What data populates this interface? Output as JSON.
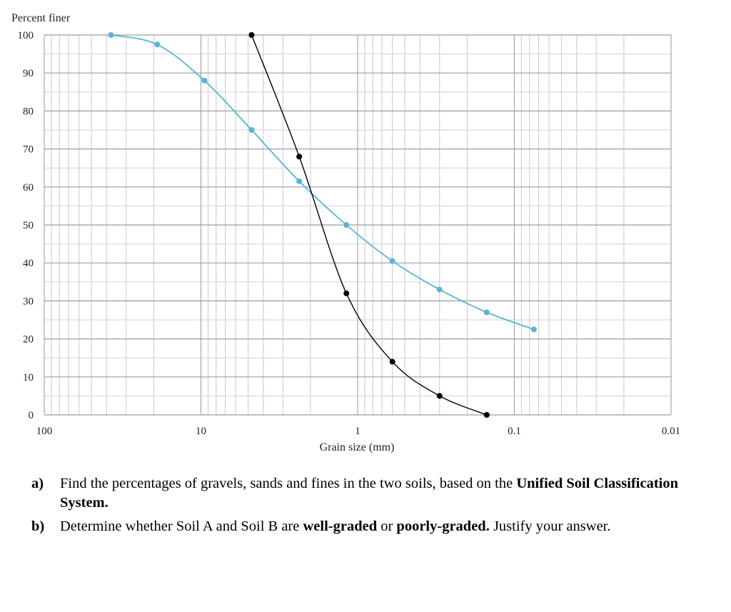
{
  "chart_data": {
    "type": "line",
    "ylabel": "Percent finer",
    "xlabel": "Grain size (mm)",
    "x_scale": "log",
    "x_reversed": true,
    "xlim": [
      100,
      0.01
    ],
    "ylim": [
      0,
      100
    ],
    "x_ticks": [
      100,
      10,
      1,
      0.1,
      0.01
    ],
    "x_tick_labels": [
      "100",
      "10",
      "1",
      "0.1",
      "0.01"
    ],
    "y_ticks": [
      0,
      10,
      20,
      30,
      40,
      50,
      60,
      70,
      80,
      90,
      100
    ],
    "y_tick_labels": [
      "0",
      "10",
      "20",
      "30",
      "40",
      "50",
      "60",
      "70",
      "80",
      "90",
      "100"
    ],
    "grid": true,
    "series": [
      {
        "color": "#5ab4d6",
        "x": [
          37.5,
          19,
          9.5,
          4.75,
          2.36,
          1.18,
          0.6,
          0.3,
          0.15,
          0.075
        ],
        "y": [
          100,
          97.5,
          88,
          75,
          61.5,
          50,
          40.5,
          33,
          27,
          22.5
        ]
      },
      {
        "color": "#000000",
        "x": [
          4.75,
          2.36,
          1.18,
          0.6,
          0.3,
          0.15
        ],
        "y": [
          100,
          68,
          32,
          14,
          5,
          0
        ]
      }
    ]
  },
  "questions": [
    {
      "letter": "a)",
      "parts": [
        "Find the percentages of gravels, sands and fines in the two soils, based on the ",
        "Unified Soil Classification System.",
        ""
      ]
    },
    {
      "letter": "b)",
      "parts": [
        "Determine whether Soil A and Soil B are ",
        "well-graded",
        " or ",
        "poorly-graded.",
        " Justify your answer."
      ]
    }
  ]
}
